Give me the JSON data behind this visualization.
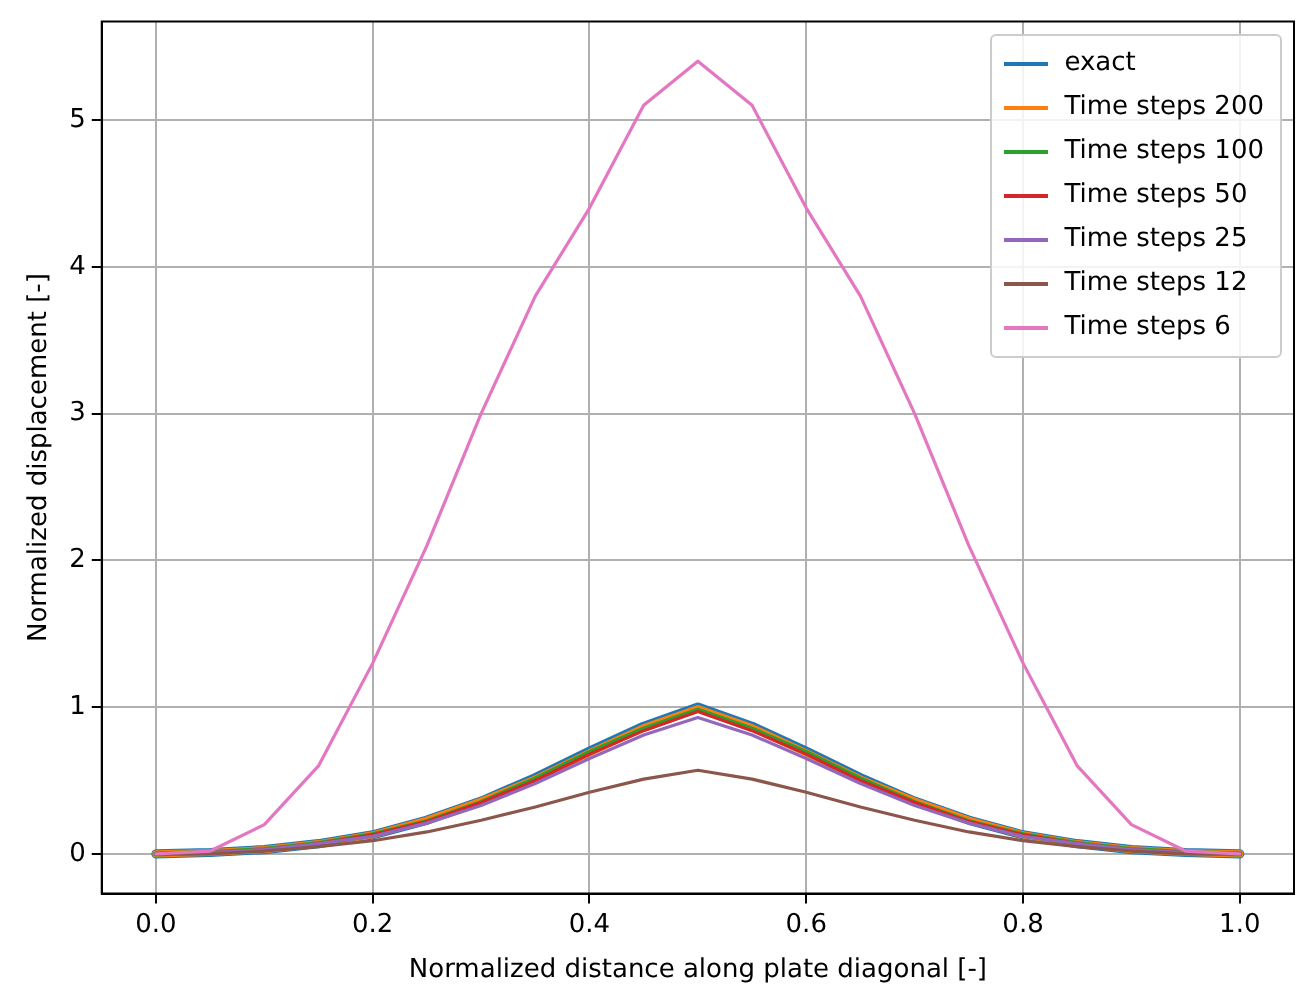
{
  "chart_data": {
    "type": "line",
    "xlabel": "Normalized distance along plate diagonal [-]",
    "ylabel": "Normalized displacement [-]",
    "x": [
      0,
      0.05,
      0.1,
      0.15,
      0.2,
      0.25,
      0.3,
      0.35,
      0.4,
      0.45,
      0.5,
      0.55,
      0.6,
      0.65,
      0.7,
      0.75,
      0.8,
      0.85,
      0.9,
      0.95,
      1
    ],
    "series": [
      {
        "name": "exact",
        "color": "#1f77b4",
        "values": [
          0,
          0.01,
          0.03,
          0.07,
          0.13,
          0.23,
          0.36,
          0.52,
          0.7,
          0.87,
          1,
          0.87,
          0.7,
          0.52,
          0.36,
          0.23,
          0.13,
          0.07,
          0.03,
          0.01,
          0
        ]
      },
      {
        "name": "Time steps 200",
        "color": "#ff7f0e",
        "values": [
          0,
          0.01,
          0.03,
          0.07,
          0.13,
          0.23,
          0.36,
          0.51,
          0.69,
          0.86,
          0.99,
          0.86,
          0.69,
          0.51,
          0.36,
          0.23,
          0.13,
          0.07,
          0.03,
          0.01,
          0
        ]
      },
      {
        "name": "Time steps 100",
        "color": "#2ca02c",
        "values": [
          0,
          0.01,
          0.03,
          0.07,
          0.13,
          0.22,
          0.35,
          0.51,
          0.69,
          0.85,
          0.98,
          0.85,
          0.69,
          0.51,
          0.35,
          0.22,
          0.13,
          0.07,
          0.03,
          0.01,
          0
        ]
      },
      {
        "name": "Time steps 50",
        "color": "#d62728",
        "values": [
          0,
          0.01,
          0.03,
          0.07,
          0.13,
          0.22,
          0.35,
          0.5,
          0.68,
          0.84,
          0.97,
          0.84,
          0.68,
          0.5,
          0.35,
          0.22,
          0.13,
          0.07,
          0.03,
          0.01,
          0
        ]
      },
      {
        "name": "Time steps 25",
        "color": "#9467bd",
        "values": [
          0,
          0.01,
          0.03,
          0.07,
          0.12,
          0.21,
          0.33,
          0.48,
          0.65,
          0.81,
          0.93,
          0.81,
          0.65,
          0.48,
          0.33,
          0.21,
          0.12,
          0.07,
          0.03,
          0.01,
          0
        ]
      },
      {
        "name": "Time steps 12",
        "color": "#8c564b",
        "values": [
          0,
          0,
          0.02,
          0.05,
          0.09,
          0.15,
          0.23,
          0.32,
          0.42,
          0.51,
          0.57,
          0.51,
          0.42,
          0.32,
          0.23,
          0.15,
          0.09,
          0.05,
          0.02,
          0,
          0
        ]
      },
      {
        "name": "Time steps 6",
        "color": "#e377c2",
        "values": [
          0,
          0.02,
          0.2,
          0.6,
          1.3,
          2.1,
          3.0,
          3.8,
          4.4,
          5.1,
          5.4,
          5.1,
          4.4,
          3.8,
          3.0,
          2.1,
          1.3,
          0.6,
          0.2,
          0.02,
          0
        ]
      }
    ],
    "xlim": [
      -0.05,
      1.05
    ],
    "xticks": [
      {
        "value": 0,
        "label": "0.0"
      },
      {
        "value": 0.2,
        "label": "0.2"
      },
      {
        "value": 0.4,
        "label": "0.4"
      },
      {
        "value": 0.6,
        "label": "0.6"
      },
      {
        "value": 0.8,
        "label": "0.8"
      },
      {
        "value": 1,
        "label": "1.0"
      }
    ],
    "ylim": [
      -0.27,
      5.67
    ],
    "yticks": [
      0,
      1,
      2,
      3,
      4,
      5
    ],
    "grid": true,
    "legend": "top right",
    "marker": "none",
    "line_style": "solid"
  }
}
